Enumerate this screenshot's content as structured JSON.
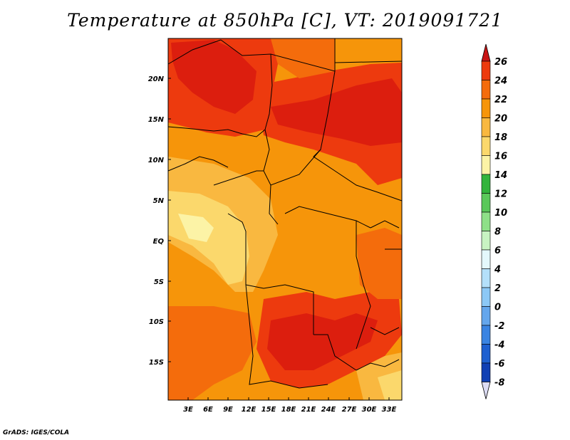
{
  "title": "Temperature at 850hPa [C], VT: 2019091721",
  "footer": "GrADS: IGES/COLA",
  "map": {
    "lat_labels": [
      "20N",
      "15N",
      "10N",
      "5N",
      "EQ",
      "5S",
      "10S",
      "15S"
    ],
    "lon_labels": [
      "3E",
      "6E",
      "9E",
      "12E",
      "15E",
      "18E",
      "21E",
      "24E",
      "27E",
      "30E",
      "33E"
    ]
  },
  "colorbar": {
    "labels": [
      "26",
      "24",
      "22",
      "20",
      "18",
      "16",
      "14",
      "12",
      "10",
      "8",
      "6",
      "4",
      "2",
      "0",
      "-2",
      "-4",
      "-6",
      "-8"
    ],
    "colors": [
      "#dc1e0e",
      "#ed3a0e",
      "#f46c0c",
      "#f6950a",
      "#f9b840",
      "#fbd86c",
      "#fcf3a6",
      "#32b43c",
      "#5ac85a",
      "#8ee088",
      "#c8f3c2",
      "#e4f8fc",
      "#b4e0fa",
      "#8cc8f6",
      "#64a6ec",
      "#3a84e2",
      "#1e60d0",
      "#1040b4",
      "#0a1e8c"
    ],
    "top_arrow_color": "#c81414",
    "bottom_arrow_color": "#dcdcf4"
  }
}
